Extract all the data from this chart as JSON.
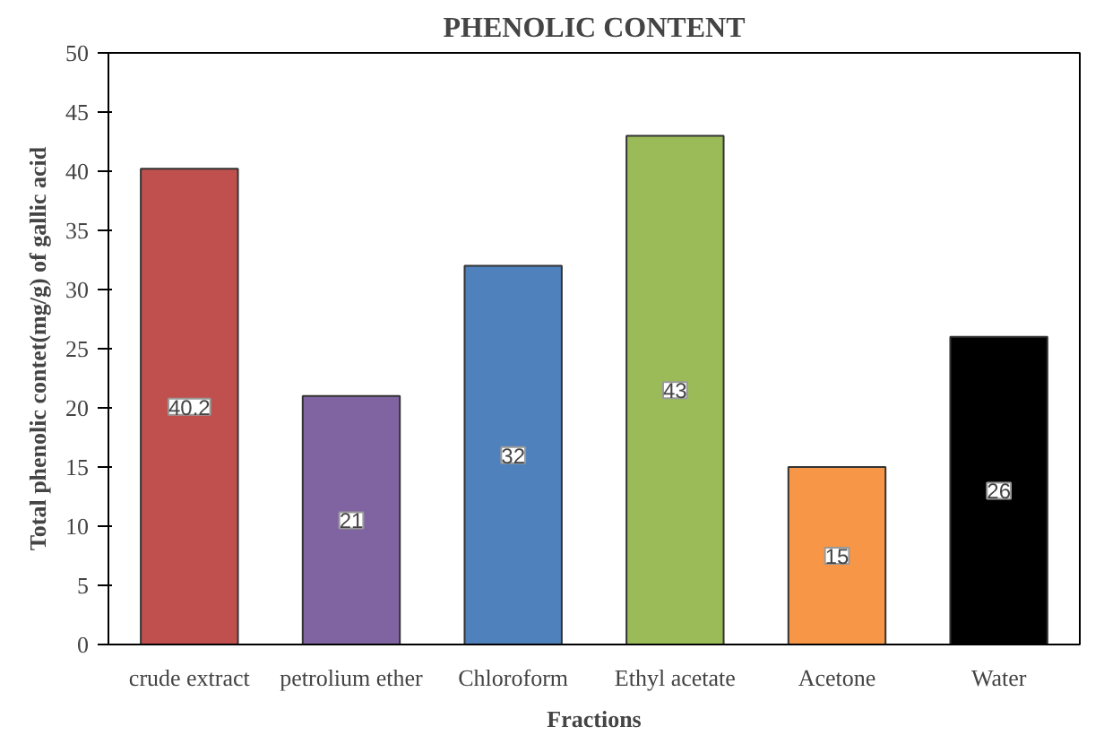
{
  "chart_data": {
    "type": "bar",
    "title": "PHENOLIC CONTENT",
    "xlabel": "Fractions",
    "ylabel": "Total phenolic contet(mg/g) of gallic acid",
    "categories": [
      "crude extract",
      "petrolium ether",
      "Chloroform",
      "Ethyl acetate",
      "Acetone",
      "Water"
    ],
    "values": [
      40.2,
      21,
      32,
      43,
      15,
      26
    ],
    "colors": [
      "#c0504d",
      "#8064a2",
      "#4f81bd",
      "#9bbb59",
      "#f79646",
      "#000000"
    ],
    "ylim": [
      0,
      50
    ],
    "yticks": [
      0,
      5,
      10,
      15,
      20,
      25,
      30,
      35,
      40,
      45,
      50
    ],
    "grid": false,
    "data_labels": true
  }
}
